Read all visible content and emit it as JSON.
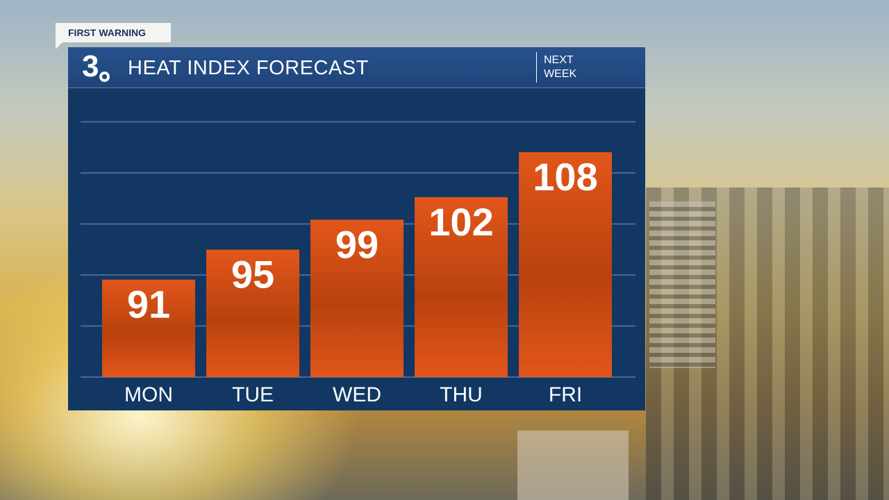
{
  "badge": "FIRST WARNING",
  "header": {
    "title": "HEAT INDEX FORECAST",
    "logo_number": "3",
    "period_line1": "NEXT",
    "period_line2": "WEEK"
  },
  "colors": {
    "panel": "#123763",
    "header": "#244b84",
    "bar_top": "#e2561a",
    "bar_mid": "#b8420e",
    "gridline": "#4a6a93"
  },
  "chart_data": {
    "type": "bar",
    "title": "HEAT INDEX FORECAST",
    "categories": [
      "MON",
      "TUE",
      "WED",
      "THU",
      "FRI"
    ],
    "values": [
      91,
      95,
      99,
      102,
      108
    ],
    "ylim": [
      78,
      112
    ],
    "grid": true,
    "legend": "none"
  }
}
